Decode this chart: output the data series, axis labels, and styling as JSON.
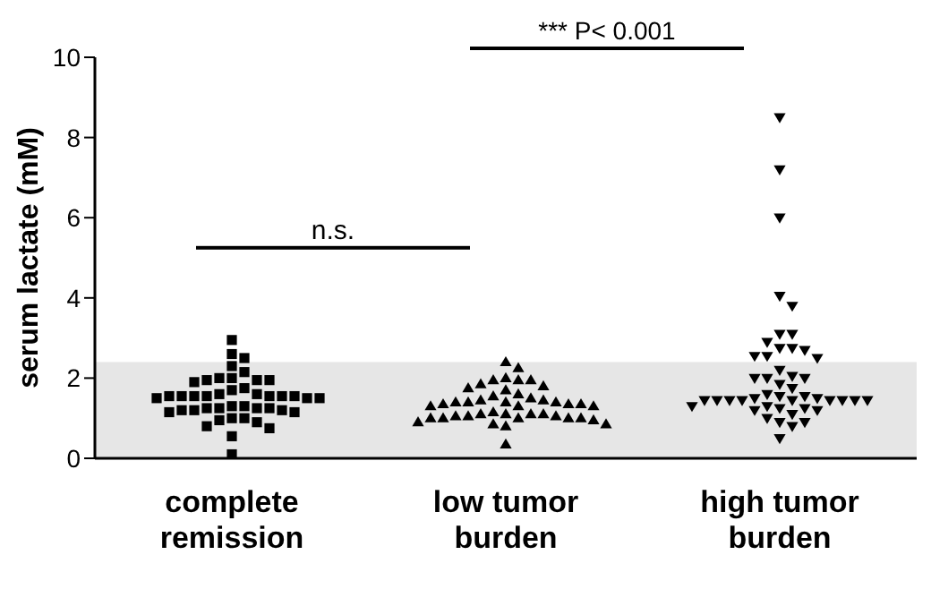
{
  "chart_data": {
    "type": "scatter",
    "categories": [
      "complete remission",
      "low tumor burden",
      "high tumor burden"
    ],
    "ylabel": "serum lactate (mM)",
    "ylim": [
      0,
      10
    ],
    "yticks": [
      0,
      2,
      4,
      6,
      8,
      10
    ],
    "annotations": [
      "n.s.",
      "*** P< 0.001"
    ],
    "bands": [
      {
        "axis": "y",
        "from": 0,
        "to": 2.4,
        "color": "#e6e6e6"
      }
    ],
    "series": [
      {
        "color": "#000000",
        "marker": "square",
        "x": [
          "complete remission",
          "complete remission",
          "complete remission",
          "complete remission",
          "complete remission",
          "complete remission",
          "complete remission",
          "complete remission",
          "complete remission",
          "complete remission",
          "complete remission",
          "complete remission",
          "complete remission",
          "complete remission",
          "complete remission",
          "complete remission",
          "complete remission",
          "complete remission",
          "complete remission",
          "complete remission",
          "complete remission",
          "complete remission",
          "complete remission",
          "complete remission",
          "complete remission",
          "complete remission",
          "complete remission",
          "complete remission",
          "complete remission",
          "complete remission",
          "complete remission",
          "complete remission",
          "complete remission",
          "complete remission",
          "complete remission",
          "complete remission",
          "complete remission",
          "complete remission",
          "complete remission",
          "complete remission",
          "complete remission",
          "complete remission",
          "complete remission",
          "complete remission"
        ],
        "values": [
          2.95,
          2.6,
          2.5,
          2.3,
          2.15,
          2.0,
          2.0,
          1.95,
          1.95,
          1.95,
          1.9,
          1.75,
          1.7,
          1.6,
          1.6,
          1.55,
          1.55,
          1.55,
          1.55,
          1.55,
          1.55,
          1.55,
          1.5,
          1.5,
          1.5,
          1.3,
          1.3,
          1.25,
          1.25,
          1.25,
          1.25,
          1.2,
          1.2,
          1.2,
          1.15,
          1.15,
          1.0,
          1.0,
          0.95,
          0.9,
          0.8,
          0.75,
          0.55,
          0.1
        ]
      },
      {
        "color": "#000000",
        "marker": "triangle",
        "x": [
          "low tumor burden",
          "low tumor burden",
          "low tumor burden",
          "low tumor burden",
          "low tumor burden",
          "low tumor burden",
          "low tumor burden",
          "low tumor burden",
          "low tumor burden",
          "low tumor burden",
          "low tumor burden",
          "low tumor burden",
          "low tumor burden",
          "low tumor burden",
          "low tumor burden",
          "low tumor burden",
          "low tumor burden",
          "low tumor burden",
          "low tumor burden",
          "low tumor burden",
          "low tumor burden",
          "low tumor burden",
          "low tumor burden",
          "low tumor burden",
          "low tumor burden",
          "low tumor burden",
          "low tumor burden",
          "low tumor burden",
          "low tumor burden",
          "low tumor burden",
          "low tumor burden",
          "low tumor burden",
          "low tumor burden",
          "low tumor burden",
          "low tumor burden",
          "low tumor burden",
          "low tumor burden",
          "low tumor burden",
          "low tumor burden",
          "low tumor burden",
          "low tumor burden",
          "low tumor burden",
          "low tumor burden",
          "low tumor burden"
        ],
        "values": [
          2.4,
          2.25,
          2.0,
          1.95,
          1.95,
          1.95,
          1.85,
          1.8,
          1.75,
          1.7,
          1.6,
          1.55,
          1.5,
          1.45,
          1.45,
          1.4,
          1.4,
          1.4,
          1.4,
          1.35,
          1.35,
          1.35,
          1.3,
          1.3,
          1.3,
          1.15,
          1.1,
          1.1,
          1.1,
          1.1,
          1.05,
          1.05,
          1.05,
          1.0,
          1.0,
          1.0,
          1.0,
          1.0,
          0.95,
          0.9,
          0.85,
          0.85,
          0.8,
          0.35
        ]
      },
      {
        "color": "#000000",
        "marker": "triangle-down",
        "x": [
          "high tumor burden",
          "high tumor burden",
          "high tumor burden",
          "high tumor burden",
          "high tumor burden",
          "high tumor burden",
          "high tumor burden",
          "high tumor burden",
          "high tumor burden",
          "high tumor burden",
          "high tumor burden",
          "high tumor burden",
          "high tumor burden",
          "high tumor burden",
          "high tumor burden",
          "high tumor burden",
          "high tumor burden",
          "high tumor burden",
          "high tumor burden",
          "high tumor burden",
          "high tumor burden",
          "high tumor burden",
          "high tumor burden",
          "high tumor burden",
          "high tumor burden",
          "high tumor burden",
          "high tumor burden",
          "high tumor burden",
          "high tumor burden",
          "high tumor burden",
          "high tumor burden",
          "high tumor burden",
          "high tumor burden",
          "high tumor burden",
          "high tumor burden",
          "high tumor burden",
          "high tumor burden",
          "high tumor burden",
          "high tumor burden",
          "high tumor burden",
          "high tumor burden",
          "high tumor burden",
          "high tumor burden",
          "high tumor burden",
          "high tumor burden",
          "high tumor burden",
          "high tumor burden"
        ],
        "values": [
          8.5,
          7.2,
          6.0,
          4.05,
          3.8,
          3.1,
          3.1,
          2.9,
          2.75,
          2.75,
          2.7,
          2.55,
          2.55,
          2.5,
          2.2,
          2.05,
          2.0,
          2.0,
          2.0,
          1.85,
          1.75,
          1.6,
          1.55,
          1.55,
          1.5,
          1.5,
          1.45,
          1.45,
          1.45,
          1.45,
          1.45,
          1.45,
          1.45,
          1.45,
          1.45,
          1.3,
          1.3,
          1.25,
          1.25,
          1.2,
          1.2,
          1.1,
          1.0,
          0.9,
          0.9,
          0.8,
          0.5
        ]
      }
    ]
  }
}
